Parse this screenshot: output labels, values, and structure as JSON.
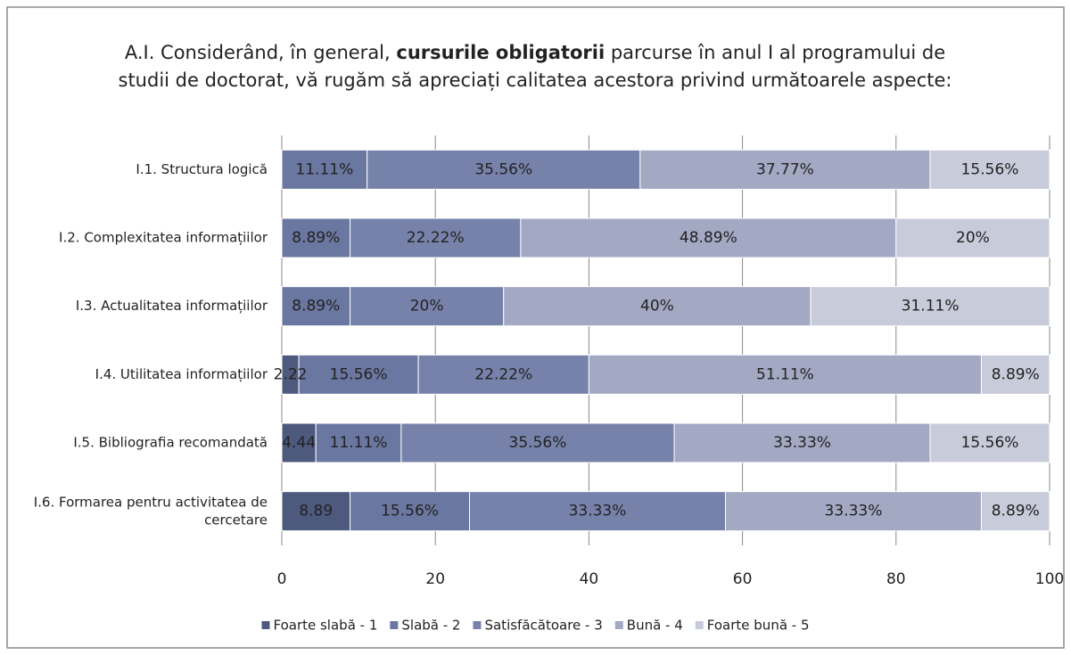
{
  "chart_data": {
    "type": "stacked_barh",
    "title_parts": [
      "A.I. Considerând, în general, ",
      "cursurile obligatorii",
      " parcurse în anul I al programului de studii de doctorat, vă rugăm să apreciați calitatea acestora privind următoarele aspecte:"
    ],
    "categories": [
      "I.1. Structura logică",
      "I.2. Complexitatea informațiilor",
      "I.3. Actualitatea informațiilor",
      "I.4. Utilitatea informațiilor",
      "I.5. Bibliografia recomandată",
      "I.6. Formarea pentru activitatea de cercetare"
    ],
    "series": [
      {
        "name": "Foarte slabă - 1",
        "color": "#4d5a7e",
        "values": [
          null,
          null,
          null,
          2.22,
          4.44,
          8.89
        ],
        "value_labels": [
          null,
          null,
          null,
          "2.22",
          "4.44",
          "8.89"
        ]
      },
      {
        "name": "Slabă - 2",
        "color": "#6a77a0",
        "values": [
          11.11,
          8.89,
          8.89,
          15.56,
          11.11,
          15.56
        ],
        "value_labels": [
          "11.11%",
          "8.89%",
          "8.89%",
          "15.56%",
          "11.11%",
          "15.56%"
        ]
      },
      {
        "name": "Satisfăcătoare - 3",
        "color": "#7682aa",
        "values": [
          35.56,
          22.22,
          20,
          22.22,
          35.56,
          33.33
        ],
        "value_labels": [
          "35.56%",
          "22.22%",
          "20%",
          "22.22%",
          "35.56%",
          "33.33%"
        ]
      },
      {
        "name": "Bună - 4",
        "color": "#a3a8c3",
        "values": [
          37.77,
          48.89,
          40,
          51.11,
          33.33,
          33.33
        ],
        "value_labels": [
          "37.77%",
          "48.89%",
          "40%",
          "51.11%",
          "33.33%",
          "33.33%"
        ]
      },
      {
        "name": "Foarte bună - 5",
        "color": "#c8cbda",
        "values": [
          15.56,
          20,
          31.11,
          8.89,
          15.56,
          8.89
        ],
        "value_labels": [
          "15.56%",
          "20%",
          "31.11%",
          "8.89%",
          "15.56%",
          "8.89%"
        ]
      }
    ],
    "xlim": [
      0,
      100
    ],
    "xticks": [
      0,
      20,
      40,
      60,
      80,
      100
    ],
    "grid": true,
    "legend": "bottom"
  }
}
